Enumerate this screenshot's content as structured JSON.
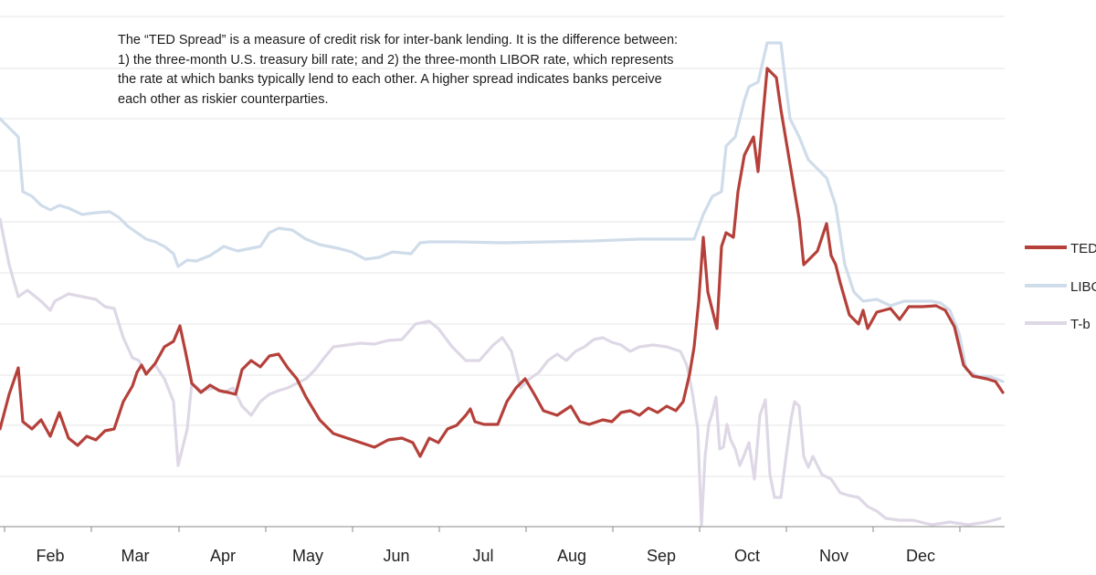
{
  "chart_data": {
    "type": "line",
    "annotation": "The “TED Spread” is a measure of credit risk for inter-bank lending. It is the difference between: 1) the three-month U.S. treasury bill rate; and 2) the three-month LIBOR rate, which represents the rate at which banks typically lend to each other.  A higher spread indicates banks perceive each other as riskier counterparties.",
    "x_tick_labels": [
      "Feb",
      "Mar",
      "Apr",
      "May",
      "Jun",
      "Jul",
      "Aug",
      "Sep",
      "Oct",
      "Nov",
      "Dec"
    ],
    "grid": true,
    "legend_position": "right",
    "legend_labels": [
      "TED",
      "LIBO",
      "T-b"
    ],
    "series": [
      {
        "name": "TED",
        "color": "#b5403a",
        "points": [
          [
            0,
            470
          ],
          [
            10,
            432
          ],
          [
            20,
            403
          ],
          [
            25,
            462
          ],
          [
            35,
            470
          ],
          [
            45,
            460
          ],
          [
            55,
            478
          ],
          [
            65,
            452
          ],
          [
            75,
            480
          ],
          [
            85,
            488
          ],
          [
            95,
            478
          ],
          [
            105,
            482
          ],
          [
            115,
            472
          ],
          [
            125,
            470
          ],
          [
            135,
            440
          ],
          [
            145,
            423
          ],
          [
            150,
            408
          ],
          [
            155,
            400
          ],
          [
            160,
            410
          ],
          [
            170,
            398
          ],
          [
            180,
            380
          ],
          [
            190,
            374
          ],
          [
            197,
            357
          ],
          [
            203,
            385
          ],
          [
            210,
            420
          ],
          [
            220,
            430
          ],
          [
            230,
            422
          ],
          [
            240,
            428
          ],
          [
            250,
            430
          ],
          [
            258,
            432
          ],
          [
            265,
            405
          ],
          [
            275,
            395
          ],
          [
            285,
            402
          ],
          [
            295,
            390
          ],
          [
            305,
            388
          ],
          [
            315,
            403
          ],
          [
            325,
            415
          ],
          [
            335,
            435
          ],
          [
            350,
            460
          ],
          [
            365,
            475
          ],
          [
            380,
            480
          ],
          [
            395,
            485
          ],
          [
            410,
            490
          ],
          [
            425,
            482
          ],
          [
            440,
            480
          ],
          [
            452,
            485
          ],
          [
            460,
            500
          ],
          [
            470,
            480
          ],
          [
            480,
            485
          ],
          [
            490,
            470
          ],
          [
            500,
            466
          ],
          [
            510,
            455
          ],
          [
            515,
            448
          ],
          [
            520,
            462
          ],
          [
            530,
            465
          ],
          [
            545,
            465
          ],
          [
            555,
            440
          ],
          [
            565,
            425
          ],
          [
            575,
            415
          ],
          [
            585,
            432
          ],
          [
            595,
            450
          ],
          [
            610,
            455
          ],
          [
            625,
            445
          ],
          [
            635,
            462
          ],
          [
            645,
            465
          ],
          [
            660,
            460
          ],
          [
            670,
            462
          ],
          [
            680,
            452
          ],
          [
            690,
            450
          ],
          [
            700,
            455
          ],
          [
            710,
            447
          ],
          [
            720,
            452
          ],
          [
            730,
            445
          ],
          [
            740,
            450
          ],
          [
            748,
            440
          ],
          [
            755,
            410
          ],
          [
            760,
            380
          ],
          [
            765,
            330
          ],
          [
            770,
            260
          ],
          [
            775,
            320
          ],
          [
            780,
            340
          ],
          [
            785,
            360
          ],
          [
            790,
            270
          ],
          [
            795,
            255
          ],
          [
            803,
            260
          ],
          [
            808,
            210
          ],
          [
            815,
            170
          ],
          [
            825,
            150
          ],
          [
            830,
            188
          ],
          [
            835,
            130
          ],
          [
            840,
            75
          ],
          [
            850,
            85
          ],
          [
            855,
            120
          ],
          [
            860,
            150
          ],
          [
            865,
            180
          ],
          [
            875,
            240
          ],
          [
            880,
            290
          ],
          [
            890,
            280
          ],
          [
            895,
            275
          ],
          [
            900,
            260
          ],
          [
            905,
            245
          ],
          [
            910,
            280
          ],
          [
            915,
            290
          ],
          [
            920,
            310
          ],
          [
            930,
            345
          ],
          [
            940,
            355
          ],
          [
            945,
            340
          ],
          [
            950,
            360
          ],
          [
            960,
            342
          ],
          [
            975,
            338
          ],
          [
            985,
            350
          ],
          [
            995,
            336
          ],
          [
            1010,
            336
          ],
          [
            1025,
            335
          ],
          [
            1035,
            340
          ],
          [
            1045,
            358
          ],
          [
            1055,
            400
          ],
          [
            1065,
            412
          ],
          [
            1080,
            415
          ],
          [
            1090,
            418
          ],
          [
            1098,
            430
          ]
        ]
      },
      {
        "name": "LIBO",
        "color": "#cfdcea",
        "points": [
          [
            0,
            130
          ],
          [
            10,
            140
          ],
          [
            20,
            150
          ],
          [
            25,
            210
          ],
          [
            35,
            215
          ],
          [
            45,
            225
          ],
          [
            55,
            230
          ],
          [
            65,
            225
          ],
          [
            75,
            228
          ],
          [
            90,
            235
          ],
          [
            105,
            233
          ],
          [
            120,
            232
          ],
          [
            130,
            238
          ],
          [
            140,
            248
          ],
          [
            150,
            255
          ],
          [
            160,
            262
          ],
          [
            170,
            265
          ],
          [
            180,
            270
          ],
          [
            190,
            278
          ],
          [
            195,
            292
          ],
          [
            205,
            285
          ],
          [
            215,
            286
          ],
          [
            230,
            280
          ],
          [
            245,
            270
          ],
          [
            260,
            275
          ],
          [
            275,
            272
          ],
          [
            285,
            270
          ],
          [
            295,
            255
          ],
          [
            305,
            250
          ],
          [
            320,
            252
          ],
          [
            335,
            262
          ],
          [
            350,
            268
          ],
          [
            370,
            272
          ],
          [
            385,
            276
          ],
          [
            400,
            284
          ],
          [
            415,
            282
          ],
          [
            430,
            276
          ],
          [
            450,
            278
          ],
          [
            460,
            266
          ],
          [
            470,
            265
          ],
          [
            500,
            265
          ],
          [
            550,
            266
          ],
          [
            600,
            265
          ],
          [
            650,
            264
          ],
          [
            700,
            262
          ],
          [
            760,
            262
          ],
          [
            770,
            235
          ],
          [
            780,
            215
          ],
          [
            790,
            210
          ],
          [
            795,
            160
          ],
          [
            805,
            150
          ],
          [
            815,
            110
          ],
          [
            820,
            95
          ],
          [
            830,
            90
          ],
          [
            840,
            47
          ],
          [
            855,
            47
          ],
          [
            860,
            90
          ],
          [
            865,
            130
          ],
          [
            875,
            150
          ],
          [
            885,
            175
          ],
          [
            895,
            185
          ],
          [
            905,
            195
          ],
          [
            915,
            225
          ],
          [
            925,
            290
          ],
          [
            935,
            320
          ],
          [
            945,
            330
          ],
          [
            960,
            328
          ],
          [
            975,
            335
          ],
          [
            990,
            330
          ],
          [
            1005,
            330
          ],
          [
            1020,
            330
          ],
          [
            1030,
            332
          ],
          [
            1040,
            340
          ],
          [
            1050,
            365
          ],
          [
            1058,
            405
          ],
          [
            1070,
            412
          ],
          [
            1085,
            413
          ],
          [
            1098,
            418
          ]
        ]
      },
      {
        "name": "T-b",
        "color": "#ded8e6",
        "points": [
          [
            0,
            240
          ],
          [
            10,
            290
          ],
          [
            20,
            325
          ],
          [
            30,
            318
          ],
          [
            45,
            330
          ],
          [
            55,
            340
          ],
          [
            60,
            330
          ],
          [
            75,
            322
          ],
          [
            90,
            325
          ],
          [
            105,
            328
          ],
          [
            115,
            336
          ],
          [
            125,
            338
          ],
          [
            135,
            370
          ],
          [
            145,
            392
          ],
          [
            152,
            395
          ],
          [
            160,
            408
          ],
          [
            170,
            400
          ],
          [
            180,
            415
          ],
          [
            190,
            440
          ],
          [
            195,
            510
          ],
          [
            205,
            470
          ],
          [
            210,
            420
          ],
          [
            220,
            428
          ],
          [
            235,
            425
          ],
          [
            245,
            430
          ],
          [
            255,
            425
          ],
          [
            265,
            445
          ],
          [
            275,
            455
          ],
          [
            285,
            440
          ],
          [
            295,
            432
          ],
          [
            305,
            428
          ],
          [
            315,
            425
          ],
          [
            325,
            420
          ],
          [
            335,
            415
          ],
          [
            345,
            405
          ],
          [
            355,
            392
          ],
          [
            365,
            380
          ],
          [
            380,
            378
          ],
          [
            395,
            376
          ],
          [
            410,
            377
          ],
          [
            425,
            373
          ],
          [
            440,
            372
          ],
          [
            455,
            355
          ],
          [
            470,
            352
          ],
          [
            480,
            360
          ],
          [
            495,
            380
          ],
          [
            510,
            395
          ],
          [
            525,
            395
          ],
          [
            540,
            378
          ],
          [
            550,
            370
          ],
          [
            560,
            385
          ],
          [
            570,
            425
          ],
          [
            580,
            415
          ],
          [
            590,
            408
          ],
          [
            600,
            395
          ],
          [
            610,
            388
          ],
          [
            620,
            395
          ],
          [
            630,
            385
          ],
          [
            640,
            380
          ],
          [
            650,
            372
          ],
          [
            660,
            370
          ],
          [
            670,
            375
          ],
          [
            680,
            378
          ],
          [
            690,
            385
          ],
          [
            700,
            380
          ],
          [
            715,
            378
          ],
          [
            730,
            380
          ],
          [
            745,
            385
          ],
          [
            752,
            400
          ],
          [
            758,
            430
          ],
          [
            764,
            470
          ],
          [
            768,
            575
          ],
          [
            772,
            500
          ],
          [
            776,
            465
          ],
          [
            780,
            452
          ],
          [
            784,
            435
          ],
          [
            788,
            492
          ],
          [
            792,
            490
          ],
          [
            796,
            465
          ],
          [
            800,
            482
          ],
          [
            805,
            492
          ],
          [
            810,
            510
          ],
          [
            815,
            498
          ],
          [
            820,
            485
          ],
          [
            826,
            525
          ],
          [
            832,
            455
          ],
          [
            838,
            438
          ],
          [
            843,
            520
          ],
          [
            848,
            545
          ],
          [
            855,
            545
          ],
          [
            860,
            505
          ],
          [
            866,
            460
          ],
          [
            870,
            440
          ],
          [
            875,
            445
          ],
          [
            880,
            500
          ],
          [
            885,
            512
          ],
          [
            890,
            500
          ],
          [
            900,
            520
          ],
          [
            910,
            525
          ],
          [
            920,
            540
          ],
          [
            930,
            543
          ],
          [
            940,
            545
          ],
          [
            950,
            555
          ],
          [
            960,
            560
          ],
          [
            970,
            568
          ],
          [
            985,
            570
          ],
          [
            1000,
            570
          ],
          [
            1020,
            575
          ],
          [
            1040,
            572
          ],
          [
            1060,
            575
          ],
          [
            1080,
            572
          ],
          [
            1095,
            568
          ]
        ]
      }
    ]
  }
}
